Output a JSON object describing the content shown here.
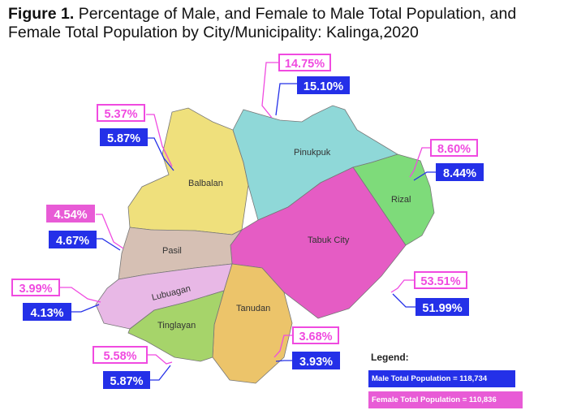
{
  "title": {
    "label": "Figure 1.",
    "text": "Percentage of Male, and Female to Male Total Population, and Female Total Population by City/Municipality: Kalinga,2020"
  },
  "colors": {
    "female": "#f04ae0",
    "male": "#2430e8"
  },
  "municipalities": [
    {
      "name": "Pinukpuk",
      "female": "14.75%",
      "male": "15.10%",
      "fill": "#8fd8d8"
    },
    {
      "name": "Balbalan",
      "female": "5.37%",
      "male": "5.87%",
      "fill": "#efe07c"
    },
    {
      "name": "Rizal",
      "female": "8.60%",
      "male": "8.44%",
      "fill": "#7edb7a"
    },
    {
      "name": "Pasil",
      "female": "4.54%",
      "male": "4.67%",
      "fill": "#d6c0b4"
    },
    {
      "name": "Tabuk City",
      "female": "53.51%",
      "male": "51.99%",
      "fill": "#e55cc4"
    },
    {
      "name": "Lubuagan",
      "female": "3.99%",
      "male": "4.13%",
      "fill": "#e8b8e6"
    },
    {
      "name": "Tanudan",
      "female": "3.68%",
      "male": "3.93%",
      "fill": "#ecc46a"
    },
    {
      "name": "Tinglayan",
      "female": "5.58%",
      "male": "5.87%",
      "fill": "#a6d46a"
    }
  ],
  "legend": {
    "title": "Legend:",
    "male": "Male Total Population = 118,734",
    "female": "Female Total Population = 110,836"
  }
}
